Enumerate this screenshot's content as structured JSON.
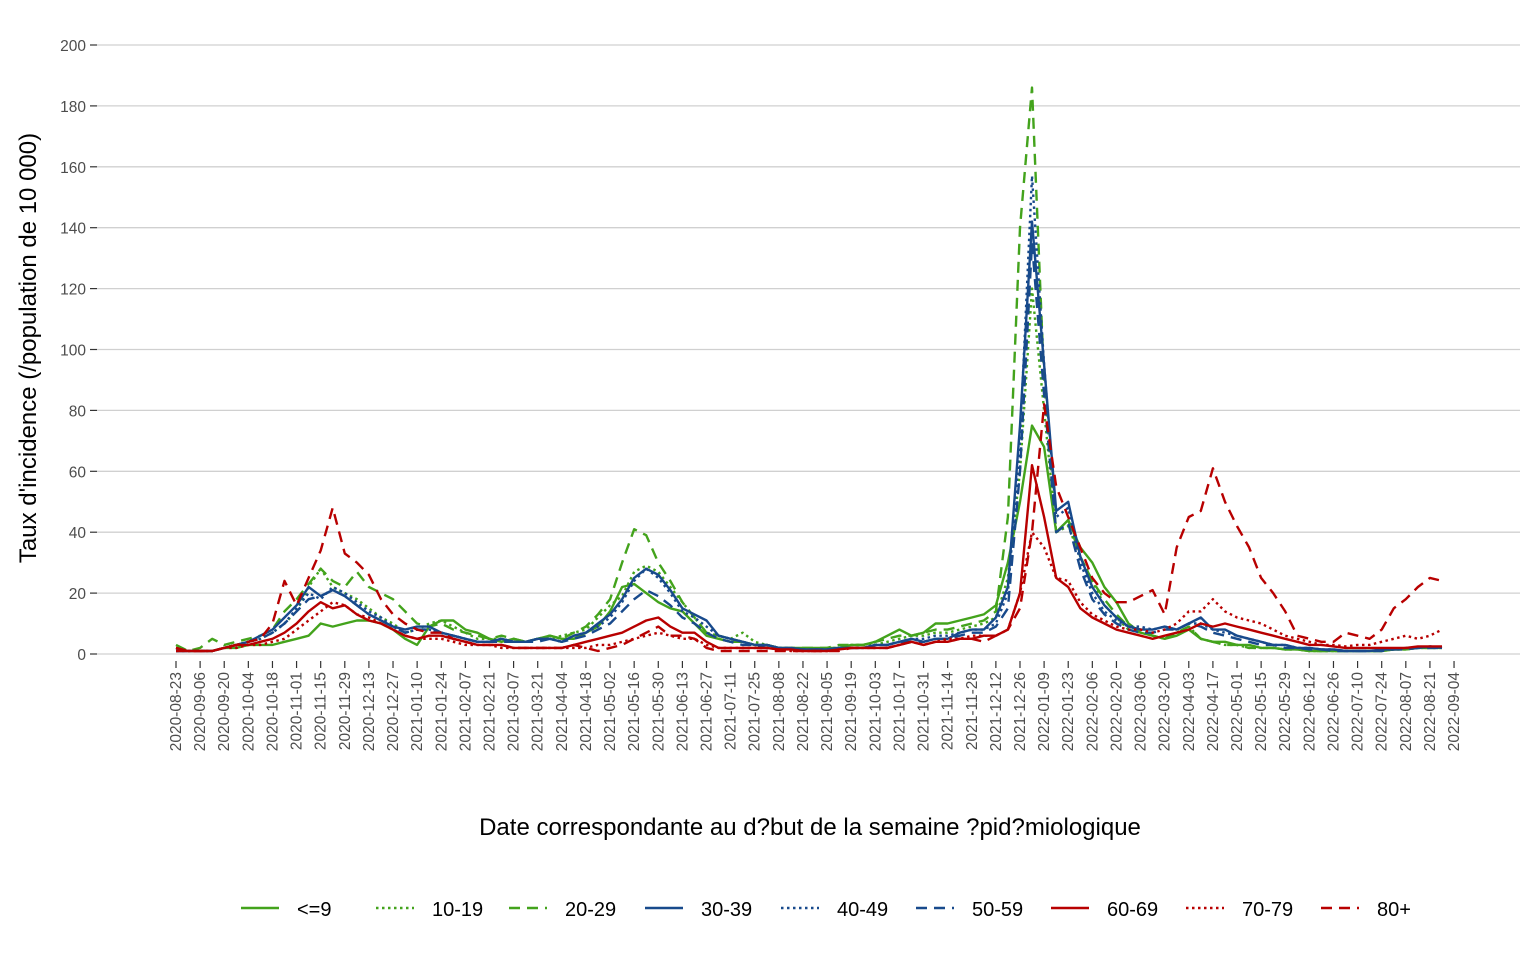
{
  "chart_data": {
    "type": "line",
    "title": "",
    "xlabel": "Date correspondante au d?but de la semaine ?pid?miologique",
    "ylabel": "Taux d'incidence (/population de 10 000)",
    "ylim": [
      0,
      200
    ],
    "y_ticks": [
      "0",
      "20",
      "40",
      "60",
      "80",
      "100",
      "120",
      "140",
      "160",
      "180",
      "200"
    ],
    "x_start": "2020-08-23",
    "x_step_days": 7,
    "x_ticks": [
      "2020-08-23",
      "2020-09-06",
      "2020-09-20",
      "2020-10-04",
      "2020-10-18",
      "2020-11-01",
      "2020-11-15",
      "2020-11-29",
      "2020-12-13",
      "2020-12-27",
      "2021-01-10",
      "2021-01-24",
      "2021-02-07",
      "2021-02-21",
      "2021-03-07",
      "2021-03-21",
      "2021-04-04",
      "2021-04-18",
      "2021-05-02",
      "2021-05-16",
      "2021-05-30",
      "2021-06-13",
      "2021-06-27",
      "2021-07-11",
      "2021-07-25",
      "2021-08-08",
      "2021-08-22",
      "2021-09-05",
      "2021-09-19",
      "2021-10-03",
      "2021-10-17",
      "2021-10-31",
      "2021-11-14",
      "2021-11-28",
      "2021-12-12",
      "2021-12-26",
      "2022-01-09",
      "2022-01-23",
      "2022-02-06",
      "2022-02-20",
      "2022-03-06",
      "2022-03-20",
      "2022-04-03",
      "2022-04-17",
      "2022-05-01",
      "2022-05-15",
      "2022-05-29",
      "2022-06-12",
      "2022-06-26",
      "2022-07-10",
      "2022-07-24",
      "2022-08-07",
      "2022-08-21",
      "2022-09-04"
    ],
    "grid": true,
    "legend_position": "bottom",
    "colors": {
      "green": "#43a31c",
      "blue": "#184a8c",
      "red": "#b80000"
    },
    "series": [
      {
        "name": "<=9",
        "color": "green",
        "style": "solid",
        "values": [
          2,
          1,
          1,
          1,
          2,
          2,
          3,
          3,
          3,
          4,
          5,
          6,
          10,
          9,
          10,
          11,
          11,
          10,
          8,
          5,
          3,
          9,
          11,
          11,
          8,
          7,
          5,
          4,
          5,
          4,
          5,
          6,
          5,
          5,
          7,
          9,
          14,
          22,
          23,
          20,
          17,
          15,
          14,
          10,
          6,
          5,
          4,
          4,
          3,
          3,
          2,
          2,
          2,
          2,
          2,
          2,
          3,
          3,
          4,
          6,
          8,
          6,
          7,
          10,
          10,
          11,
          12,
          13,
          16,
          30,
          50,
          75,
          68,
          40,
          44,
          35,
          30,
          22,
          17,
          10,
          7,
          6,
          5,
          6,
          8,
          5,
          4,
          4,
          3,
          3,
          2,
          2,
          1.5,
          1.5,
          1,
          1,
          1,
          1,
          1,
          1,
          1,
          1.5,
          1.5,
          2,
          2,
          2
        ]
      },
      {
        "name": "10-19",
        "color": "green",
        "style": "dotted",
        "values": [
          1,
          1,
          1,
          1,
          2,
          3,
          4,
          5,
          7,
          10,
          14,
          22,
          28,
          22,
          20,
          18,
          15,
          12,
          10,
          7,
          8,
          10,
          11,
          9,
          7,
          5,
          5,
          5,
          4,
          4,
          5,
          5,
          6,
          7,
          8,
          12,
          16,
          19,
          27,
          29,
          27,
          22,
          17,
          12,
          7,
          6,
          5,
          7,
          4,
          3,
          2,
          2,
          1.5,
          1.5,
          2,
          2,
          3,
          3,
          3,
          4,
          5,
          6,
          6,
          7,
          7,
          8,
          9,
          10,
          12,
          25,
          60,
          120,
          80,
          40,
          42,
          32,
          24,
          16,
          12,
          8,
          7,
          6,
          5,
          7,
          9,
          5,
          4,
          3,
          3,
          2,
          2,
          2,
          1.5,
          1.5,
          1,
          1,
          1,
          1,
          1,
          1,
          1,
          1.5,
          1.5,
          2,
          2,
          2
        ]
      },
      {
        "name": "20-29",
        "color": "green",
        "style": "dashed",
        "values": [
          3,
          1,
          2,
          5,
          3,
          4,
          5,
          6,
          8,
          14,
          18,
          23,
          28,
          24,
          22,
          27,
          22,
          20,
          18,
          14,
          10,
          9,
          10,
          8,
          7,
          6,
          5,
          6,
          5,
          4,
          5,
          6,
          5,
          7,
          9,
          13,
          18,
          30,
          41,
          39,
          30,
          24,
          17,
          12,
          7,
          6,
          5,
          4,
          3,
          3,
          2,
          2,
          2,
          2,
          2,
          3,
          3,
          3,
          4,
          5,
          6,
          6,
          7,
          8,
          8,
          9,
          10,
          11,
          14,
          45,
          140,
          186,
          90,
          40,
          44,
          32,
          24,
          18,
          13,
          9,
          8,
          6,
          5,
          7,
          9,
          5,
          4,
          3,
          3,
          2,
          2,
          2,
          1.5,
          1.5,
          1,
          1,
          1,
          1,
          1,
          1,
          1,
          1.5,
          1.5,
          2,
          2,
          2
        ]
      },
      {
        "name": "30-39",
        "color": "blue",
        "style": "solid",
        "values": [
          1,
          1,
          1,
          1,
          2,
          3,
          4,
          6,
          8,
          12,
          16,
          22,
          19,
          21,
          19,
          16,
          13,
          11,
          9,
          8,
          9,
          9,
          7,
          6,
          5,
          4,
          4,
          5,
          4,
          4,
          5,
          5,
          4,
          6,
          7,
          10,
          13,
          18,
          25,
          28,
          26,
          21,
          15,
          13,
          11,
          6,
          5,
          4,
          3,
          3,
          2,
          2,
          1.5,
          1.5,
          1.5,
          2,
          2,
          2,
          3,
          3,
          4,
          5,
          4,
          5,
          5,
          7,
          8,
          8,
          12,
          22,
          75,
          142,
          95,
          47,
          50,
          32,
          22,
          16,
          12,
          9,
          8,
          8,
          9,
          8,
          10,
          12,
          8,
          8,
          6,
          5,
          4,
          3,
          3,
          2,
          2,
          1.5,
          1.5,
          1,
          1,
          1,
          1.5,
          1.5,
          2,
          2,
          2.5,
          2
        ]
      },
      {
        "name": "40-49",
        "color": "blue",
        "style": "dotted",
        "values": [
          1,
          1,
          1,
          1,
          2,
          3,
          4,
          5,
          7,
          10,
          15,
          20,
          18,
          22,
          20,
          17,
          14,
          12,
          9,
          7,
          8,
          8,
          7,
          6,
          5,
          4,
          4,
          5,
          4,
          4,
          5,
          5,
          4,
          6,
          7,
          9,
          12,
          17,
          24,
          28,
          25,
          20,
          14,
          12,
          9,
          6,
          5,
          4,
          3,
          3,
          2,
          2,
          1.5,
          1.5,
          1.5,
          2,
          2,
          2,
          3,
          3,
          4,
          5,
          5,
          6,
          6,
          7,
          8,
          8,
          10,
          20,
          70,
          157,
          95,
          45,
          48,
          30,
          20,
          14,
          11,
          9,
          9,
          8,
          9,
          8,
          10,
          10,
          8,
          7,
          6,
          5,
          4,
          3,
          3,
          2,
          2,
          1.5,
          1.5,
          1,
          1,
          1,
          1.5,
          1.5,
          2,
          2,
          2.5,
          2
        ]
      },
      {
        "name": "50-59",
        "color": "blue",
        "style": "dashed",
        "values": [
          1,
          1,
          1,
          1,
          2,
          3,
          4,
          5,
          7,
          10,
          14,
          18,
          19,
          21,
          19,
          16,
          13,
          11,
          9,
          7,
          8,
          8,
          7,
          6,
          5,
          4,
          4,
          4,
          4,
          4,
          4,
          5,
          4,
          5,
          6,
          8,
          10,
          14,
          18,
          21,
          19,
          16,
          12,
          10,
          7,
          5,
          4,
          3,
          3,
          2,
          2,
          1.5,
          1.5,
          1.5,
          1.5,
          2,
          2,
          2,
          3,
          3,
          4,
          4,
          4,
          5,
          5,
          6,
          7,
          7,
          9,
          15,
          60,
          135,
          85,
          40,
          43,
          28,
          18,
          13,
          10,
          8,
          7,
          7,
          8,
          8,
          10,
          9,
          7,
          6,
          5,
          4,
          3,
          3,
          2,
          2,
          1.5,
          1.5,
          1,
          1,
          1,
          1,
          1,
          1.5,
          1.5,
          2,
          2,
          2
        ]
      },
      {
        "name": "60-69",
        "color": "red",
        "style": "solid",
        "values": [
          1,
          1,
          1,
          1,
          2,
          3,
          3,
          4,
          5,
          7,
          10,
          14,
          17,
          15,
          16,
          13,
          11,
          10,
          8,
          6,
          5,
          6,
          6,
          5,
          4,
          3,
          3,
          3,
          2,
          2,
          2,
          2,
          2,
          3,
          4,
          5,
          6,
          7,
          9,
          11,
          12,
          9,
          7,
          7,
          4,
          2,
          2,
          2,
          2,
          2,
          1.5,
          1.5,
          1,
          1,
          1,
          1.5,
          2,
          2,
          2,
          2,
          3,
          4,
          3,
          4,
          4,
          5,
          5,
          6,
          6,
          8,
          20,
          62,
          45,
          25,
          22,
          15,
          12,
          10,
          8,
          7,
          6,
          5,
          6,
          7,
          8,
          10,
          9,
          10,
          9,
          8,
          7,
          6,
          5,
          4,
          3,
          3,
          2.5,
          2,
          2,
          2,
          2,
          2,
          2,
          2.5,
          2.5,
          2.5
        ]
      },
      {
        "name": "70-79",
        "color": "red",
        "style": "dotted",
        "values": [
          2,
          1,
          1,
          1,
          2,
          2,
          3,
          3,
          4,
          5,
          8,
          11,
          14,
          17,
          16,
          13,
          12,
          10,
          8,
          6,
          5,
          5,
          5,
          4,
          3,
          3,
          3,
          2,
          2,
          2,
          2,
          2,
          2,
          2,
          2,
          3,
          3,
          4,
          5,
          6,
          7,
          6,
          5,
          5,
          3,
          2,
          2,
          2,
          2,
          2,
          1.5,
          1,
          1,
          1,
          1,
          1.5,
          2,
          2,
          2,
          2,
          3,
          4,
          3,
          4,
          5,
          5,
          6,
          6,
          6,
          8,
          20,
          40,
          35,
          25,
          24,
          17,
          13,
          11,
          9,
          8,
          8,
          7,
          8,
          10,
          14,
          14,
          18,
          14,
          12,
          11,
          10,
          8,
          6,
          5,
          4,
          3,
          3,
          2.5,
          3,
          3,
          4,
          5,
          6,
          5,
          6,
          8
        ]
      },
      {
        "name": "80+",
        "color": "red",
        "style": "dashed",
        "values": [
          2,
          1,
          1,
          1,
          2,
          3,
          4,
          5,
          10,
          24,
          16,
          25,
          34,
          48,
          33,
          30,
          26,
          18,
          13,
          10,
          8,
          7,
          7,
          5,
          4,
          3,
          3,
          3,
          2,
          2,
          2,
          2,
          2,
          3,
          2,
          1,
          2,
          3,
          5,
          7,
          9,
          6,
          6,
          5,
          2,
          1,
          1,
          1,
          1,
          1,
          1,
          1,
          1,
          1,
          1,
          1,
          2,
          2,
          2,
          2,
          3,
          4,
          3,
          4,
          4,
          5,
          5,
          4,
          6,
          8,
          15,
          40,
          82,
          55,
          45,
          35,
          25,
          20,
          17,
          17,
          19,
          21,
          13,
          35,
          45,
          47,
          61,
          50,
          42,
          35,
          25,
          20,
          14,
          6,
          5,
          4,
          4,
          7,
          6,
          5,
          8,
          15,
          18,
          22,
          25,
          24
        ]
      }
    ]
  }
}
